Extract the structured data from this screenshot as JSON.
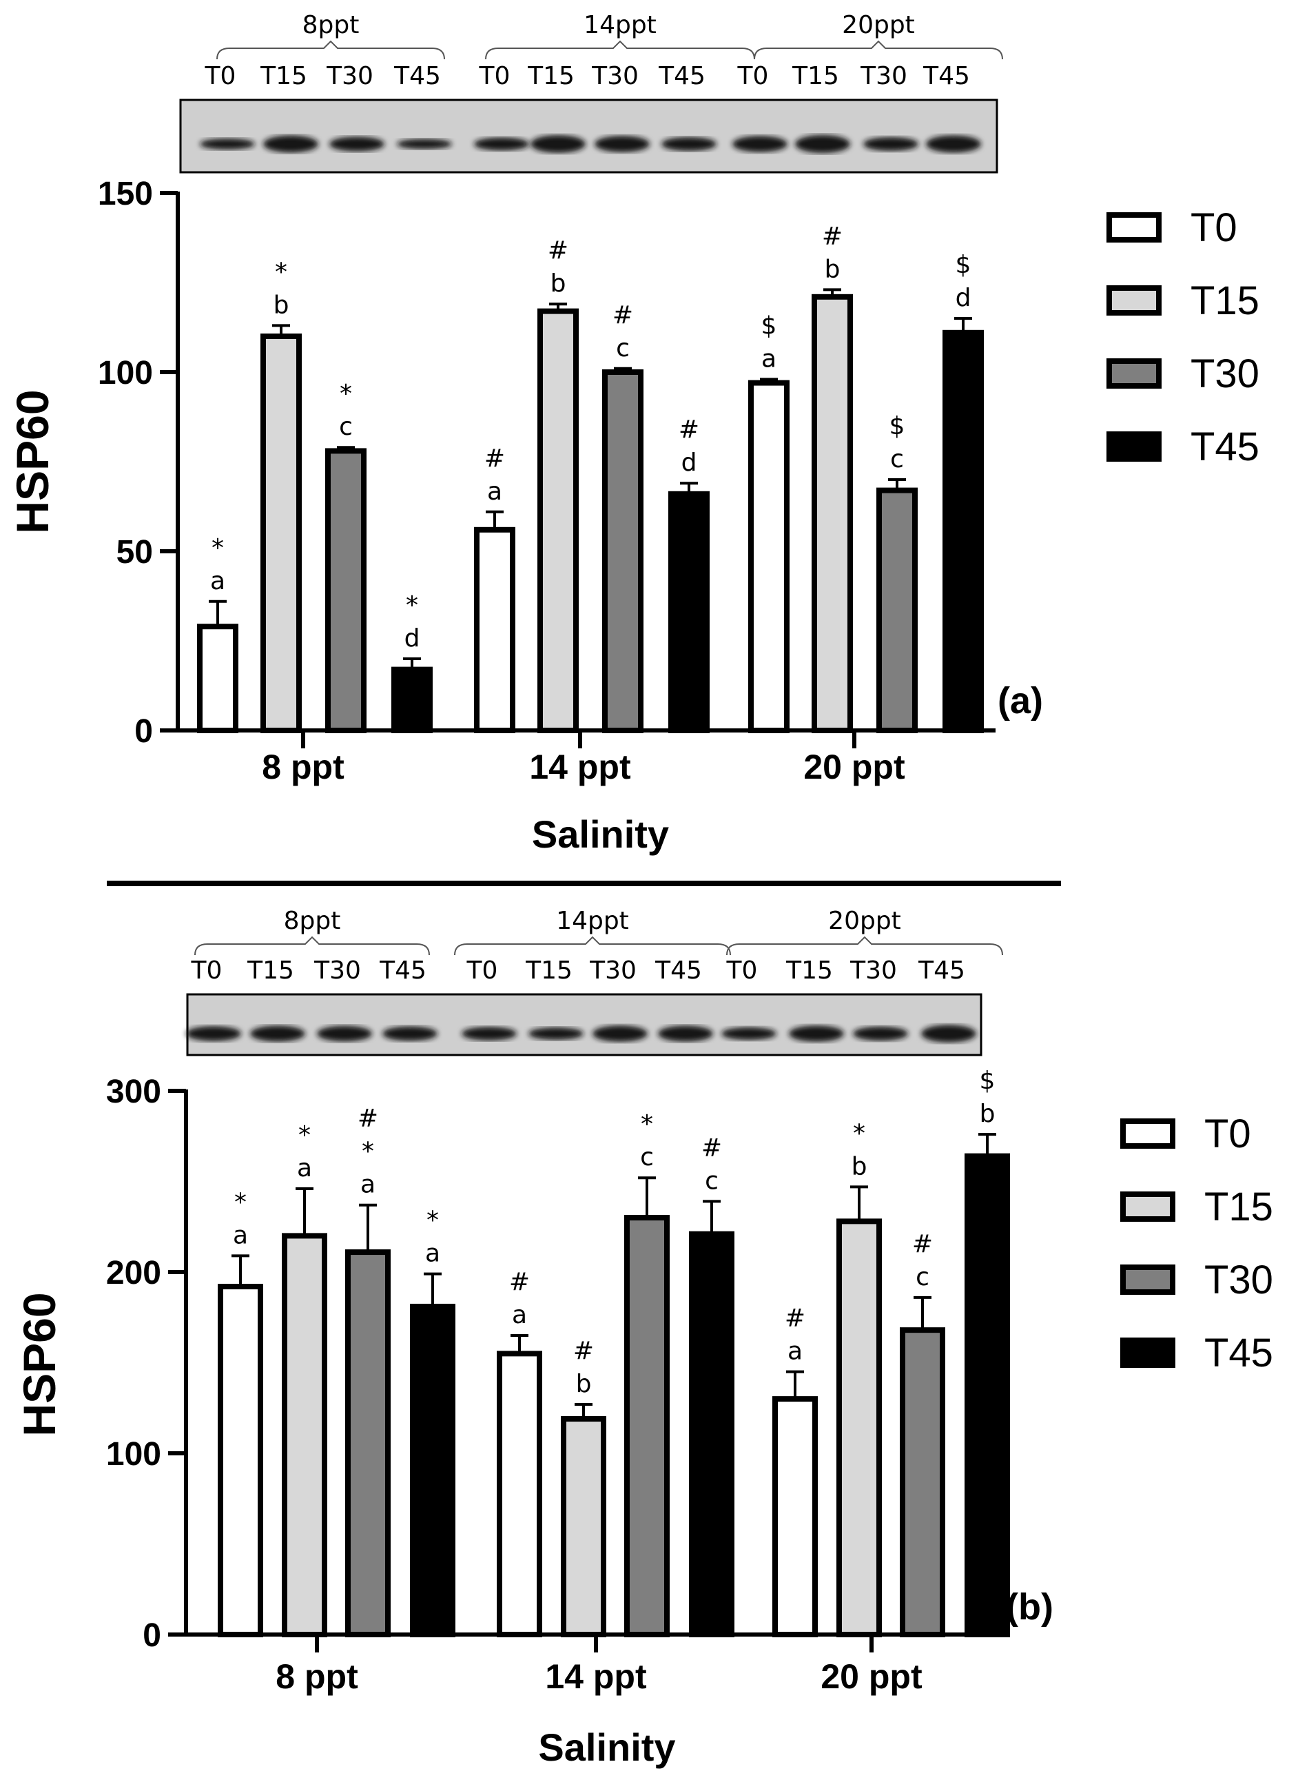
{
  "chart_data": [
    {
      "type": "bar",
      "panel_label": "(a)",
      "ylabel": "HSP60",
      "xlabel": "Salinity",
      "ylim": [
        0,
        150
      ],
      "yticks": [
        0,
        50,
        100,
        150
      ],
      "categories": [
        "8 ppt",
        "14 ppt",
        "20 ppt"
      ],
      "legend_position": "right",
      "series": [
        {
          "name": "T0",
          "color": "#ffffff",
          "values": [
            29,
            56,
            97
          ],
          "errors": [
            7,
            5,
            1
          ],
          "labels": [
            [
              "*",
              "a"
            ],
            [
              "#",
              "a"
            ],
            [
              "$",
              "a"
            ]
          ]
        },
        {
          "name": "T15",
          "color": "#d8d8d8",
          "values": [
            110,
            117,
            121
          ],
          "errors": [
            3,
            2,
            2
          ],
          "labels": [
            [
              "*",
              "b"
            ],
            [
              "#",
              "b"
            ],
            [
              "#",
              "b"
            ]
          ]
        },
        {
          "name": "T30",
          "color": "#7f7f7f",
          "values": [
            78,
            100,
            67
          ],
          "errors": [
            1,
            1,
            3
          ],
          "labels": [
            [
              "*",
              "c"
            ],
            [
              "#",
              "c"
            ],
            [
              "$",
              "c"
            ]
          ]
        },
        {
          "name": "T45",
          "color": "#000000",
          "values": [
            17,
            66,
            111
          ],
          "errors": [
            3,
            3,
            4
          ],
          "labels": [
            [
              "*",
              "d"
            ],
            [
              "#",
              "d"
            ],
            [
              "$",
              "d"
            ]
          ]
        }
      ],
      "blot": {
        "groups": [
          "8ppt",
          "14ppt",
          "20ppt"
        ],
        "lanes": [
          "T0",
          "T15",
          "T30",
          "T45",
          "T0",
          "T15",
          "T30",
          "T45",
          "T0",
          "T15",
          "T30",
          "T45"
        ]
      }
    },
    {
      "type": "bar",
      "panel_label": "(b)",
      "ylabel": "HSP60",
      "xlabel": "Salinity",
      "ylim": [
        0,
        300
      ],
      "yticks": [
        0,
        100,
        200,
        300
      ],
      "categories": [
        "8 ppt",
        "14 ppt",
        "20 ppt"
      ],
      "legend_position": "right",
      "series": [
        {
          "name": "T0",
          "color": "#ffffff",
          "values": [
            192,
            155,
            130
          ],
          "errors": [
            17,
            10,
            15
          ],
          "labels": [
            [
              "*",
              "a"
            ],
            [
              "#",
              "a"
            ],
            [
              "#",
              "a"
            ]
          ]
        },
        {
          "name": "T15",
          "color": "#d8d8d8",
          "values": [
            220,
            119,
            228
          ],
          "errors": [
            26,
            8,
            19
          ],
          "labels": [
            [
              "*",
              "a"
            ],
            [
              "#",
              "b"
            ],
            [
              "*",
              "b"
            ]
          ]
        },
        {
          "name": "T30",
          "color": "#7f7f7f",
          "values": [
            211,
            230,
            168
          ],
          "errors": [
            26,
            22,
            18
          ],
          "labels": [
            [
              "#",
              "*",
              "a"
            ],
            [
              "*",
              "c"
            ],
            [
              "#",
              "c"
            ]
          ]
        },
        {
          "name": "T45",
          "color": "#000000",
          "values": [
            181,
            221,
            264
          ],
          "errors": [
            18,
            18,
            12
          ],
          "labels": [
            [
              "*",
              "a"
            ],
            [
              "#",
              "c"
            ],
            [
              "$",
              "b"
            ]
          ]
        }
      ],
      "blot": {
        "groups": [
          "8ppt",
          "14ppt",
          "20ppt"
        ],
        "lanes": [
          "T0",
          "T15",
          "T30",
          "T45",
          "T0",
          "T15",
          "T30",
          "T45",
          "T0",
          "T15",
          "T30",
          "T45"
        ]
      }
    }
  ]
}
